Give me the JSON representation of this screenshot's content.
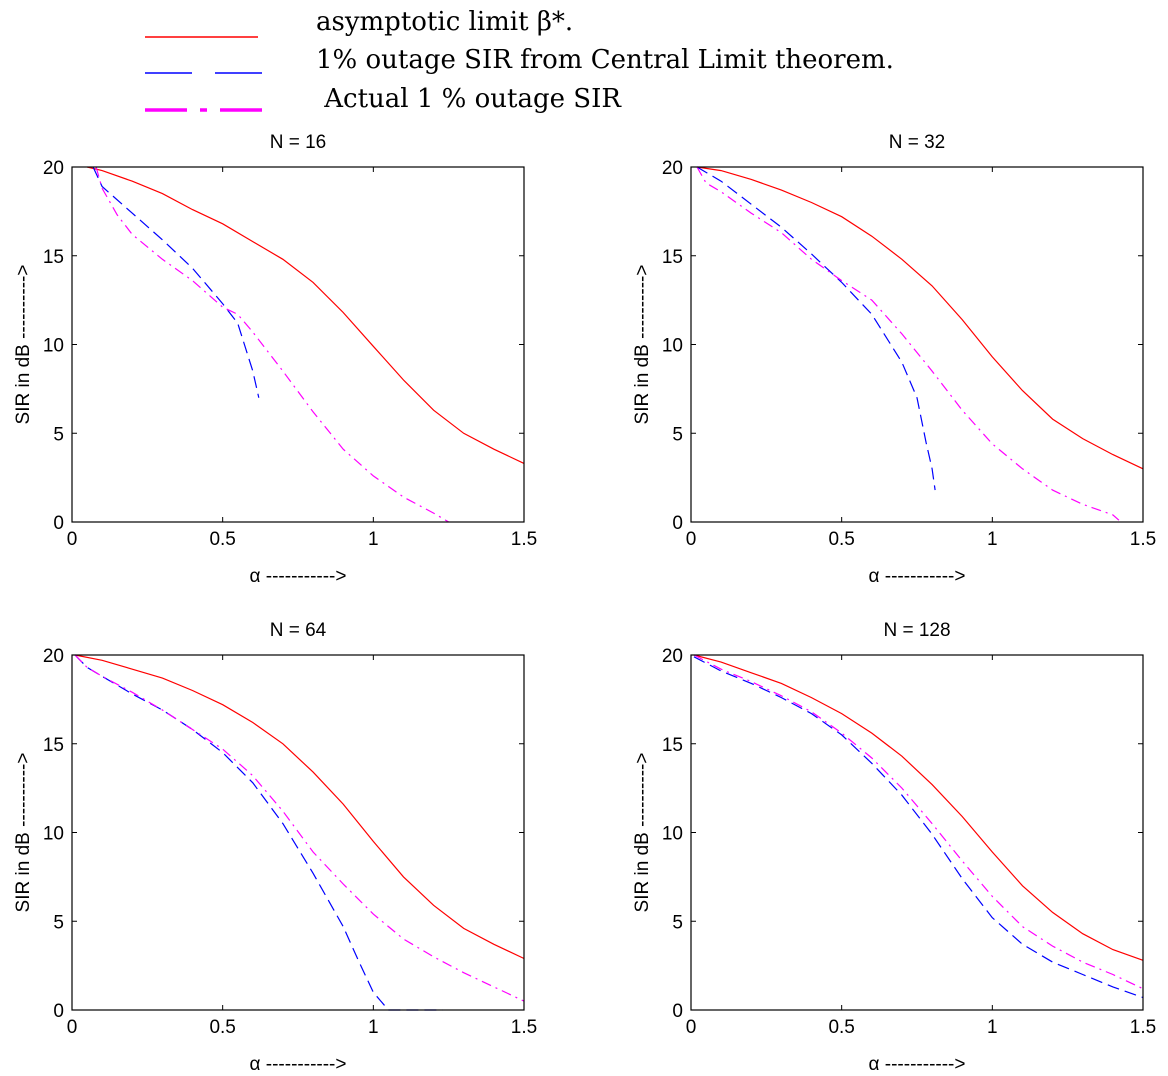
{
  "legend": {
    "entries": [
      {
        "label": "asymptotic limit β*.",
        "color": "#ff0000",
        "style": "solid"
      },
      {
        "label": "1% outage SIR from Central Limit theorem.",
        "color": "#0000ff",
        "style": "dashed"
      },
      {
        "label": " Actual 1 % outage SIR",
        "color": "#ff00ff",
        "style": "dashdot"
      }
    ]
  },
  "chart_data": [
    {
      "type": "line",
      "title": "N = 16",
      "xlabel": "α ----------->",
      "ylabel": "SIR in dB ---------->",
      "xlim": [
        0,
        1.5
      ],
      "ylim": [
        0,
        20
      ],
      "xticks": [
        0,
        0.5,
        1,
        1.5
      ],
      "xtick_labels": [
        "0",
        "0.5",
        "1",
        "1.5"
      ],
      "yticks": [
        0,
        5,
        10,
        15,
        20
      ],
      "ytick_labels": [
        "0",
        "5",
        "10",
        "15",
        "20"
      ],
      "series": [
        {
          "color": "#ff0000",
          "style": "solid",
          "x": [
            0.05,
            0.1,
            0.2,
            0.3,
            0.4,
            0.5,
            0.6,
            0.7,
            0.8,
            0.9,
            1.0,
            1.1,
            1.2,
            1.3,
            1.4,
            1.5
          ],
          "y": [
            20,
            19.8,
            19.2,
            18.5,
            17.6,
            16.8,
            15.8,
            14.8,
            13.5,
            11.8,
            9.9,
            8.0,
            6.3,
            5.0,
            4.1,
            3.3
          ]
        },
        {
          "color": "#0000ff",
          "style": "dashed",
          "x": [
            0.07,
            0.1,
            0.2,
            0.3,
            0.4,
            0.5,
            0.55,
            0.6,
            0.62
          ],
          "y": [
            20,
            18.9,
            17.4,
            15.9,
            14.3,
            12.3,
            11.2,
            8.5,
            7.0
          ]
        },
        {
          "color": "#ff00ff",
          "style": "dashdot",
          "x": [
            0.08,
            0.1,
            0.15,
            0.2,
            0.3,
            0.4,
            0.5,
            0.55,
            0.6,
            0.7,
            0.8,
            0.9,
            1.0,
            1.1,
            1.2,
            1.25
          ],
          "y": [
            20,
            18.8,
            17.3,
            16.2,
            14.8,
            13.6,
            12.1,
            11.7,
            10.7,
            8.5,
            6.2,
            4.1,
            2.6,
            1.4,
            0.5,
            0.0
          ]
        }
      ]
    },
    {
      "type": "line",
      "title": "N = 32",
      "xlabel": "α ----------->",
      "ylabel": "SIR in dB ---------->",
      "xlim": [
        0,
        1.5
      ],
      "ylim": [
        0,
        20
      ],
      "xticks": [
        0,
        0.5,
        1,
        1.5
      ],
      "xtick_labels": [
        "0",
        "0.5",
        "1",
        "1.5"
      ],
      "yticks": [
        0,
        5,
        10,
        15,
        20
      ],
      "ytick_labels": [
        "0",
        "5",
        "10",
        "15",
        "20"
      ],
      "series": [
        {
          "color": "#ff0000",
          "style": "solid",
          "x": [
            0.02,
            0.1,
            0.2,
            0.3,
            0.4,
            0.5,
            0.6,
            0.7,
            0.8,
            0.9,
            1.0,
            1.1,
            1.2,
            1.3,
            1.4,
            1.5
          ],
          "y": [
            20,
            19.8,
            19.3,
            18.7,
            18.0,
            17.2,
            16.1,
            14.8,
            13.3,
            11.4,
            9.3,
            7.4,
            5.8,
            4.7,
            3.8,
            3.0
          ]
        },
        {
          "color": "#0000ff",
          "style": "dashed",
          "x": [
            0.02,
            0.1,
            0.2,
            0.3,
            0.4,
            0.5,
            0.6,
            0.7,
            0.75,
            0.78,
            0.8,
            0.81
          ],
          "y": [
            20,
            19.2,
            17.9,
            16.6,
            15.1,
            13.5,
            11.7,
            9.0,
            7.0,
            4.5,
            3.0,
            1.8
          ]
        },
        {
          "color": "#ff00ff",
          "style": "dashdot",
          "x": [
            0.02,
            0.05,
            0.1,
            0.2,
            0.3,
            0.4,
            0.5,
            0.6,
            0.7,
            0.8,
            0.9,
            1.0,
            1.1,
            1.2,
            1.3,
            1.4,
            1.42
          ],
          "y": [
            20,
            19.1,
            18.6,
            17.4,
            16.3,
            14.8,
            13.6,
            12.5,
            10.6,
            8.5,
            6.3,
            4.4,
            3.0,
            1.8,
            1.0,
            0.4,
            0.1
          ]
        }
      ]
    },
    {
      "type": "line",
      "title": "N = 64",
      "xlabel": "α ----------->",
      "ylabel": "SIR in dB ---------->",
      "xlim": [
        0,
        1.5
      ],
      "ylim": [
        0,
        20
      ],
      "xticks": [
        0,
        0.5,
        1,
        1.5
      ],
      "xtick_labels": [
        "0",
        "0.5",
        "1",
        "1.5"
      ],
      "yticks": [
        0,
        5,
        10,
        15,
        20
      ],
      "ytick_labels": [
        "0",
        "5",
        "10",
        "15",
        "20"
      ],
      "series": [
        {
          "color": "#ff0000",
          "style": "solid",
          "x": [
            0.01,
            0.1,
            0.2,
            0.3,
            0.4,
            0.5,
            0.6,
            0.7,
            0.8,
            0.9,
            1.0,
            1.1,
            1.2,
            1.3,
            1.4,
            1.5
          ],
          "y": [
            20,
            19.7,
            19.2,
            18.7,
            18.0,
            17.2,
            16.2,
            15.0,
            13.4,
            11.6,
            9.5,
            7.5,
            5.9,
            4.6,
            3.7,
            2.9
          ]
        },
        {
          "color": "#0000ff",
          "style": "dashed",
          "x": [
            0.01,
            0.05,
            0.1,
            0.2,
            0.3,
            0.4,
            0.5,
            0.6,
            0.7,
            0.8,
            0.9,
            0.95,
            1.0,
            1.05,
            1.2,
            1.23
          ],
          "y": [
            20,
            19.3,
            18.8,
            17.8,
            16.9,
            15.8,
            14.5,
            12.8,
            10.5,
            7.7,
            4.7,
            2.8,
            1.0,
            0.0,
            0.0,
            0.0
          ]
        },
        {
          "color": "#ff00ff",
          "style": "dashdot",
          "x": [
            0.01,
            0.05,
            0.1,
            0.2,
            0.3,
            0.4,
            0.5,
            0.6,
            0.7,
            0.8,
            0.9,
            1.0,
            1.1,
            1.2,
            1.3,
            1.4,
            1.5
          ],
          "y": [
            20,
            19.3,
            18.8,
            17.9,
            16.9,
            15.8,
            14.7,
            13.2,
            11.2,
            8.9,
            7.1,
            5.4,
            4.0,
            3.0,
            2.1,
            1.3,
            0.5
          ]
        }
      ]
    },
    {
      "type": "line",
      "title": "N = 128",
      "xlabel": "α ----------->",
      "ylabel": "SIR in dB ---------->",
      "xlim": [
        0,
        1.5
      ],
      "ylim": [
        0,
        20
      ],
      "xticks": [
        0,
        0.5,
        1,
        1.5
      ],
      "xtick_labels": [
        "0",
        "0.5",
        "1",
        "1.5"
      ],
      "yticks": [
        0,
        5,
        10,
        15,
        20
      ],
      "ytick_labels": [
        "0",
        "5",
        "10",
        "15",
        "20"
      ],
      "series": [
        {
          "color": "#ff0000",
          "style": "solid",
          "x": [
            0.01,
            0.1,
            0.2,
            0.3,
            0.4,
            0.5,
            0.6,
            0.7,
            0.8,
            0.9,
            1.0,
            1.1,
            1.2,
            1.3,
            1.4,
            1.5
          ],
          "y": [
            20,
            19.6,
            19.0,
            18.4,
            17.6,
            16.7,
            15.6,
            14.3,
            12.7,
            10.9,
            8.9,
            7.0,
            5.5,
            4.3,
            3.4,
            2.8
          ]
        },
        {
          "color": "#0000ff",
          "style": "dashed",
          "x": [
            0.01,
            0.1,
            0.2,
            0.3,
            0.4,
            0.5,
            0.6,
            0.7,
            0.8,
            0.9,
            1.0,
            1.1,
            1.2,
            1.3,
            1.4,
            1.5
          ],
          "y": [
            19.9,
            19.1,
            18.4,
            17.6,
            16.7,
            15.5,
            13.9,
            12.1,
            9.9,
            7.4,
            5.2,
            3.7,
            2.7,
            2.0,
            1.3,
            0.7
          ]
        },
        {
          "color": "#ff00ff",
          "style": "dashdot",
          "x": [
            0.01,
            0.1,
            0.2,
            0.3,
            0.4,
            0.5,
            0.6,
            0.7,
            0.8,
            0.9,
            1.0,
            1.1,
            1.2,
            1.3,
            1.4,
            1.5
          ],
          "y": [
            20,
            19.2,
            18.5,
            17.7,
            16.8,
            15.6,
            14.2,
            12.5,
            10.5,
            8.4,
            6.4,
            4.7,
            3.6,
            2.7,
            2.0,
            1.2
          ]
        }
      ]
    }
  ]
}
